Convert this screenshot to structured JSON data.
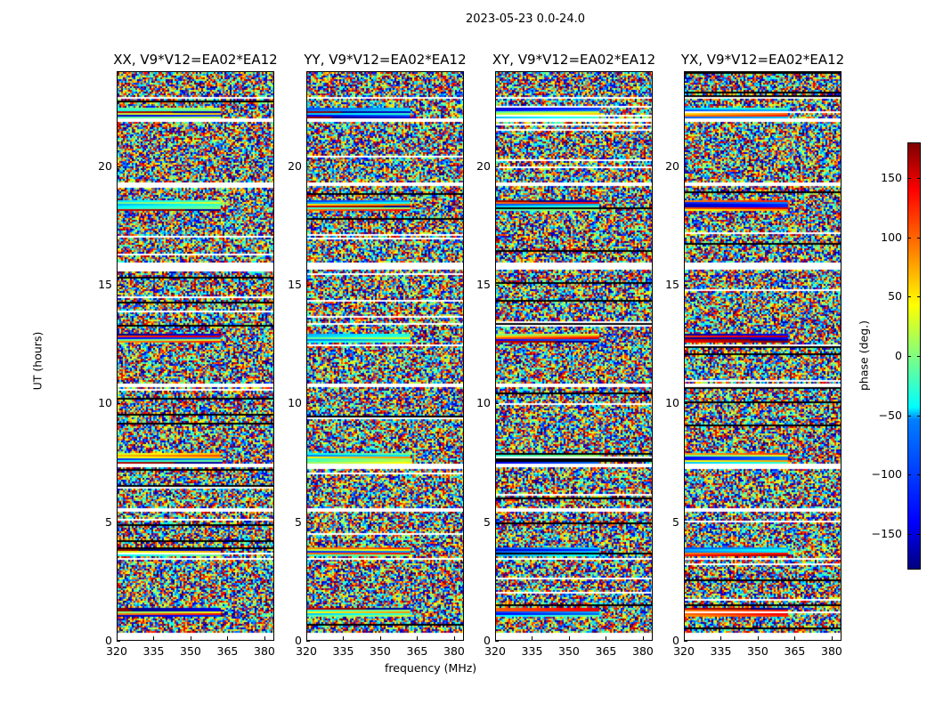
{
  "chart_data": {
    "type": "heatmap",
    "title": "2023-05-23 0.0-24.0",
    "xlabel": "frequency (MHz)",
    "ylabel": "UT (hours)",
    "xlim": [
      320,
      384
    ],
    "ylim": [
      0,
      24
    ],
    "xticks": [
      "320",
      "335",
      "350",
      "365",
      "380"
    ],
    "yticks": [
      "0",
      "5",
      "10",
      "15",
      "20"
    ],
    "panels": [
      {
        "title": "XX, V9*V12=EA02*EA12"
      },
      {
        "title": "YY, V9*V12=EA02*EA12"
      },
      {
        "title": "XY, V9*V12=EA02*EA12"
      },
      {
        "title": "YX, V9*V12=EA02*EA12"
      }
    ],
    "colorbar": {
      "label": "phase (deg.)",
      "range": [
        -180,
        180
      ],
      "ticks": [
        "150",
        "100",
        "50",
        "0",
        "−50",
        "−100",
        "−150"
      ],
      "tick_values": [
        150,
        100,
        50,
        0,
        -50,
        -100,
        -150
      ],
      "colormap": "jet"
    },
    "flagged_time_ranges_hours": [
      [
        0,
        0.35
      ],
      [
        3.4,
        3.5
      ],
      [
        5.45,
        5.6
      ],
      [
        7.3,
        7.45
      ],
      [
        10.75,
        10.9
      ],
      [
        15.7,
        16.0
      ],
      [
        19.2,
        19.4
      ],
      [
        21.9,
        22.1
      ],
      [
        22.9,
        23.0
      ]
    ],
    "coherent_bands_hours": [
      1.2,
      3.75,
      7.7,
      12.8,
      18.4,
      22.3
    ]
  }
}
